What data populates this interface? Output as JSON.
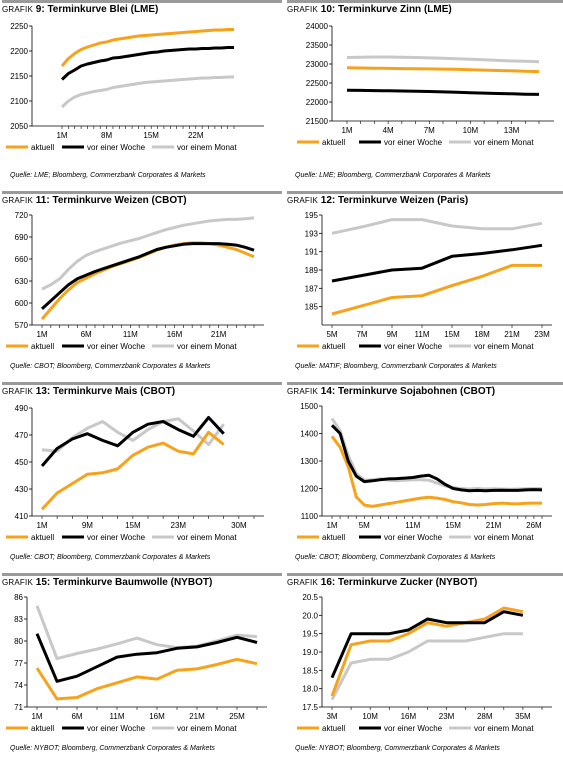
{
  "colors": {
    "aktuell": "#f7a21b",
    "woche": "#000000",
    "monat": "#c8c8c8"
  },
  "chart_data": [
    {
      "type": "line",
      "title_prefix": "Grafik",
      "title_num": "9",
      "title": "Terminkurve Blei (LME)",
      "ylim": [
        2050,
        2250
      ],
      "yticks": [
        "2050",
        "2100",
        "2150",
        "2200",
        "2250"
      ],
      "x_count": 28,
      "x_ticks": [
        {
          "i": 0,
          "label": "1M"
        },
        {
          "i": 7,
          "label": "8M"
        },
        {
          "i": 14,
          "label": "15M"
        },
        {
          "i": 21,
          "label": "22M"
        }
      ],
      "series": [
        {
          "name": "aktuell",
          "key": "aktuell",
          "values": [
            2170,
            2185,
            2195,
            2203,
            2208,
            2212,
            2216,
            2218,
            2222,
            2224,
            2226,
            2228,
            2230,
            2231,
            2232,
            2233,
            2234,
            2235,
            2236,
            2237,
            2238,
            2239,
            2240,
            2241,
            2242,
            2242,
            2243,
            2243
          ]
        },
        {
          "name": "vor einer Woche",
          "key": "woche",
          "values": [
            2143,
            2155,
            2162,
            2170,
            2174,
            2177,
            2180,
            2182,
            2186,
            2187,
            2189,
            2191,
            2193,
            2195,
            2197,
            2198,
            2200,
            2201,
            2202,
            2203,
            2204,
            2204,
            2205,
            2205,
            2206,
            2206,
            2207,
            2207
          ]
        },
        {
          "name": "vor einem Monat",
          "key": "monat",
          "values": [
            2088,
            2100,
            2108,
            2113,
            2116,
            2119,
            2121,
            2123,
            2127,
            2129,
            2131,
            2133,
            2135,
            2137,
            2138,
            2139,
            2140,
            2141,
            2142,
            2143,
            2144,
            2145,
            2146,
            2146,
            2147,
            2147,
            2148,
            2148
          ]
        }
      ],
      "source": "Quelle: LME; Bloomberg, Commerzbank Corporates & Markets"
    },
    {
      "type": "line",
      "title_prefix": "Grafik",
      "title_num": "10",
      "title": "Terminkurve Zinn (LME)",
      "ylim": [
        21500,
        24000
      ],
      "yticks": [
        "21500",
        "22000",
        "22500",
        "23000",
        "23500",
        "24000"
      ],
      "x_count": 15,
      "x_ticks": [
        {
          "i": 0,
          "label": "1M"
        },
        {
          "i": 3,
          "label": "4M"
        },
        {
          "i": 6,
          "label": "7M"
        },
        {
          "i": 9,
          "label": "10M"
        },
        {
          "i": 12,
          "label": "13M"
        }
      ],
      "series": [
        {
          "name": "aktuell",
          "key": "aktuell",
          "values": [
            22900,
            22895,
            22890,
            22885,
            22880,
            22875,
            22870,
            22865,
            22860,
            22850,
            22840,
            22830,
            22820,
            22810,
            22800
          ]
        },
        {
          "name": "vor einer Woche",
          "key": "woche",
          "values": [
            22310,
            22305,
            22300,
            22295,
            22290,
            22285,
            22275,
            22265,
            22255,
            22245,
            22235,
            22225,
            22215,
            22205,
            22200
          ]
        },
        {
          "name": "vor einem Monat",
          "key": "monat",
          "values": [
            23170,
            23180,
            23185,
            23185,
            23180,
            23170,
            23160,
            23150,
            23140,
            23125,
            23110,
            23095,
            23080,
            23070,
            23060
          ]
        }
      ],
      "source": "Quelle: LME; Bloomberg, Commerzbank Corporates & Markets"
    },
    {
      "type": "line",
      "title_prefix": "Grafik",
      "title_num": "11",
      "title": "Terminkurve Weizen (CBOT)",
      "ylim": [
        570,
        720
      ],
      "yticks": [
        "570",
        "600",
        "630",
        "660",
        "690",
        "720"
      ],
      "x_count": 25,
      "x_ticks": [
        {
          "i": 0,
          "label": "1M"
        },
        {
          "i": 5,
          "label": "6M"
        },
        {
          "i": 10,
          "label": "11M"
        },
        {
          "i": 15,
          "label": "16M"
        },
        {
          "i": 20,
          "label": "21M"
        }
      ],
      "series": [
        {
          "name": "aktuell",
          "key": "aktuell",
          "values": [
            578,
            592,
            606,
            618,
            628,
            634,
            640,
            645,
            650,
            654,
            658,
            662,
            667,
            672,
            676,
            679,
            681,
            682,
            682,
            681,
            679,
            676,
            673,
            668,
            663
          ]
        },
        {
          "name": "vor einer Woche",
          "key": "woche",
          "values": [
            592,
            603,
            614,
            625,
            633,
            638,
            643,
            647,
            651,
            655,
            659,
            663,
            668,
            673,
            676,
            678,
            680,
            681,
            681,
            681,
            681,
            680,
            679,
            676,
            672
          ]
        },
        {
          "name": "vor einem Monat",
          "key": "monat",
          "values": [
            619,
            625,
            633,
            646,
            657,
            665,
            670,
            674,
            678,
            682,
            685,
            688,
            692,
            696,
            700,
            703,
            706,
            708,
            710,
            712,
            713,
            714,
            714,
            715,
            716
          ]
        }
      ],
      "source": "Quelle: CBOT; Bloomberg, Commerzbank Corporates & Markets"
    },
    {
      "type": "line",
      "title_prefix": "Grafik",
      "title_num": "12",
      "title": "Terminkurve Weizen (Paris)",
      "ylim": [
        183,
        195
      ],
      "yticks": [
        "185",
        "187",
        "189",
        "191",
        "193",
        "195"
      ],
      "x_count": 8,
      "x_ticks": [
        {
          "i": 0,
          "label": "5M"
        },
        {
          "i": 1,
          "label": "7M"
        },
        {
          "i": 2,
          "label": "9M"
        },
        {
          "i": 3,
          "label": "11M"
        },
        {
          "i": 4,
          "label": "15M"
        },
        {
          "i": 5,
          "label": "18M"
        },
        {
          "i": 6,
          "label": "21M"
        },
        {
          "i": 7,
          "label": "23M"
        }
      ],
      "series": [
        {
          "name": "aktuell",
          "key": "aktuell",
          "values": [
            184.2,
            185.1,
            186.0,
            186.2,
            187.3,
            188.3,
            189.5,
            189.5
          ]
        },
        {
          "name": "vor einer Woche",
          "key": "woche",
          "values": [
            187.8,
            188.4,
            189.0,
            189.2,
            190.5,
            190.8,
            191.2,
            191.7
          ]
        },
        {
          "name": "vor einem Monat",
          "key": "monat",
          "values": [
            193.0,
            193.7,
            194.5,
            194.5,
            193.8,
            193.5,
            193.5,
            194.1
          ]
        }
      ],
      "source": "Quelle: MATIF; Bloomberg, Commerzbank Corporates & Markets"
    },
    {
      "type": "line",
      "title_prefix": "Grafik",
      "title_num": "13",
      "title": "Terminkurve Mais (CBOT)",
      "ylim": [
        410,
        490
      ],
      "yticks": [
        "410",
        "430",
        "450",
        "470",
        "490"
      ],
      "x_count": 15,
      "x_ticks": [
        {
          "i": 0,
          "label": "1M"
        },
        {
          "i": 3,
          "label": "9M"
        },
        {
          "i": 6,
          "label": "15M"
        },
        {
          "i": 9,
          "label": "23M"
        },
        {
          "i": 13,
          "label": "30M"
        }
      ],
      "series": [
        {
          "name": "aktuell",
          "key": "aktuell",
          "values": [
            415,
            427,
            434,
            441,
            442,
            445,
            455,
            461,
            464,
            458,
            456,
            472,
            463,
            null,
            null
          ]
        },
        {
          "name": "vor einer Woche",
          "key": "woche",
          "values": [
            447,
            460,
            467,
            471,
            466,
            462,
            472,
            478,
            480,
            474,
            469,
            483,
            471,
            null,
            null
          ]
        },
        {
          "name": "vor einem Monat",
          "key": "monat",
          "values": [
            459,
            458,
            468,
            475,
            480,
            472,
            466,
            474,
            480,
            482,
            473,
            463,
            478,
            null,
            null
          ]
        }
      ],
      "source": "Quelle: CBOT; Bloomberg, Commerzbank Corporates & Markets"
    },
    {
      "type": "line",
      "title_prefix": "Grafik",
      "title_num": "14",
      "title": "Terminkurve Sojabohnen (CBOT)",
      "ylim": [
        1100,
        1500
      ],
      "yticks": [
        "1100",
        "1200",
        "1300",
        "1400",
        "1500"
      ],
      "x_count": 27,
      "x_ticks": [
        {
          "i": 0,
          "label": "1M"
        },
        {
          "i": 4,
          "label": "5M"
        },
        {
          "i": 10,
          "label": "11M"
        },
        {
          "i": 15,
          "label": "15M"
        },
        {
          "i": 20,
          "label": "21M"
        },
        {
          "i": 25,
          "label": "26M"
        }
      ],
      "series": [
        {
          "name": "aktuell",
          "key": "aktuell",
          "values": [
            1390,
            1350,
            1280,
            1170,
            1140,
            1135,
            1140,
            1145,
            1150,
            1155,
            1160,
            1165,
            1168,
            1165,
            1160,
            1152,
            1148,
            1142,
            1140,
            1142,
            1145,
            1147,
            1145,
            1144,
            1146,
            1147,
            1147
          ]
        },
        {
          "name": "vor einer Woche",
          "key": "woche",
          "values": [
            1430,
            1400,
            1300,
            1245,
            1225,
            1228,
            1232,
            1235,
            1236,
            1238,
            1240,
            1245,
            1248,
            1235,
            1215,
            1200,
            1195,
            1192,
            1193,
            1192,
            1193,
            1194,
            1193,
            1193,
            1195,
            1196,
            1195
          ]
        },
        {
          "name": "vor einem Monat",
          "key": "monat",
          "values": [
            1455,
            1410,
            1320,
            1255,
            1230,
            1232,
            1235,
            1230,
            1228,
            1230,
            1232,
            1232,
            1230,
            1220,
            1210,
            1203,
            1200,
            1198,
            1200,
            1198,
            1199,
            1198,
            1197,
            1198,
            1199,
            1200,
            1200
          ]
        }
      ],
      "source": "Quelle: CBOT; Bloomberg, Commerzbank Corporates & Markets"
    },
    {
      "type": "line",
      "title_prefix": "Grafik",
      "title_num": "15",
      "title": "Terminkurve Baumwolle (NYBOT)",
      "ylim": [
        71,
        86
      ],
      "yticks": [
        "71",
        "74",
        "77",
        "80",
        "83",
        "86"
      ],
      "x_count": 12,
      "x_ticks": [
        {
          "i": 0,
          "label": "1M"
        },
        {
          "i": 2,
          "label": "6M"
        },
        {
          "i": 4,
          "label": "11M"
        },
        {
          "i": 6,
          "label": "16M"
        },
        {
          "i": 8,
          "label": "21M"
        },
        {
          "i": 10,
          "label": "25M"
        }
      ],
      "series": [
        {
          "name": "aktuell",
          "key": "aktuell",
          "values": [
            76.3,
            72.1,
            72.3,
            73.5,
            74.3,
            75.1,
            74.8,
            76.0,
            76.2,
            76.8,
            77.5,
            76.9
          ]
        },
        {
          "name": "vor einer Woche",
          "key": "woche",
          "values": [
            81.0,
            74.5,
            75.2,
            76.5,
            77.8,
            78.2,
            78.4,
            79.0,
            79.2,
            79.8,
            80.5,
            79.8
          ]
        },
        {
          "name": "vor einem Monat",
          "key": "monat",
          "values": [
            84.8,
            77.6,
            78.3,
            78.9,
            79.6,
            80.4,
            79.5,
            79.1,
            79.3,
            80.0,
            80.8,
            80.6
          ]
        }
      ],
      "source": "Quelle: NYBOT; Bloomberg, Commerzbank Corporates & Markets"
    },
    {
      "type": "line",
      "title_prefix": "Grafik",
      "title_num": "16",
      "title": "Terminkurve Zucker (NYBOT)",
      "ylim": [
        17.5,
        20.5
      ],
      "yticks": [
        "17.5",
        "18.0",
        "18.5",
        "19.0",
        "19.5",
        "20.0",
        "20.5"
      ],
      "x_count": 12,
      "x_ticks": [
        {
          "i": 0,
          "label": "3M"
        },
        {
          "i": 2,
          "label": "10M"
        },
        {
          "i": 4,
          "label": "16M"
        },
        {
          "i": 6,
          "label": "23M"
        },
        {
          "i": 8,
          "label": "28M"
        },
        {
          "i": 10,
          "label": "35M"
        }
      ],
      "series": [
        {
          "name": "aktuell",
          "key": "aktuell",
          "values": [
            17.8,
            19.2,
            19.3,
            19.3,
            19.5,
            19.8,
            19.7,
            19.8,
            19.9,
            20.2,
            20.1,
            null
          ]
        },
        {
          "name": "vor einer Woche",
          "key": "woche",
          "values": [
            18.3,
            19.5,
            19.5,
            19.5,
            19.6,
            19.9,
            19.8,
            19.8,
            19.8,
            20.1,
            20.0,
            null
          ]
        },
        {
          "name": "vor einem Monat",
          "key": "monat",
          "values": [
            17.7,
            18.7,
            18.8,
            18.8,
            19.0,
            19.3,
            19.3,
            19.3,
            19.4,
            19.5,
            19.5,
            null
          ]
        }
      ],
      "source": "Quelle: NYBOT; Bloomberg, Commerzbank Corporates & Markets"
    }
  ]
}
